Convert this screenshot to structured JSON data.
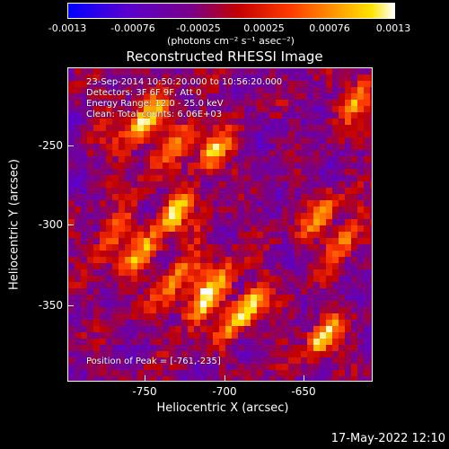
{
  "colorbar": {
    "tick_labels": [
      "-0.0013",
      "-0.00076",
      "-0.00025",
      "0.00025",
      "0.00076",
      "0.0013"
    ],
    "units_label": "(photons cm⁻² s⁻¹ asec⁻²)",
    "colors": [
      "#0000ff",
      "#5a00cf",
      "#7a0087",
      "#c20000",
      "#ff3a00",
      "#ff9a00",
      "#ffe400",
      "#ffffff"
    ]
  },
  "title": "Reconstructed RHESSI Image",
  "overlay": {
    "time_range": "23-Sep-2014 10:50:20.000 to 10:56:20.000",
    "detectors": "Detectors: 3F 6F 9F, Att 0",
    "energy_range": "Energy Range: 12.0 - 25.0 keV",
    "clean_info": "Clean: Total counts: 6.06E+03",
    "peak": "Position of Peak = [-761,-235]"
  },
  "axes": {
    "xlabel": "Heliocentric X (arcsec)",
    "ylabel": "Heliocentric Y (arcsec)",
    "xticks": [
      "-750",
      "-700",
      "-650"
    ],
    "yticks": [
      "-250",
      "-300",
      "-350"
    ]
  },
  "timestamp": "17-May-2022 12:10"
}
